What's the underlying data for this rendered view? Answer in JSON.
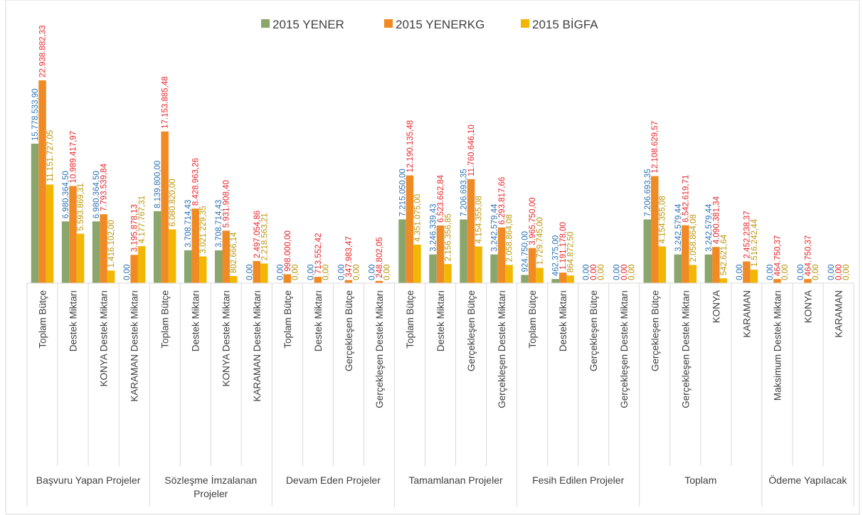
{
  "chart_data": {
    "type": "bar",
    "groups": [
      {
        "name": "Başvuru Yapan Projeler",
        "categories": [
          "Toplam Bütçe",
          "Destek Miktarı",
          "KONYA Destek Miktarı",
          "KARAMAN Destek Miktarı"
        ]
      },
      {
        "name": "Sözleşme İmzalanan Projeler",
        "categories": [
          "Toplam Bütçe",
          "Destek Miktarı",
          "KONYA Destek Miktarı",
          "KARAMAN Destek Miktarı"
        ]
      },
      {
        "name": "Devam Eden Projeler",
        "categories": [
          "Toplam Bütçe",
          "Destek Miktarı",
          "Gerçekleşen Bütçe",
          "Gerçekleşen Destek Miktarı"
        ]
      },
      {
        "name": "Tamamlanan Projeler",
        "categories": [
          "Toplam Bütçe",
          "Destek Miktarı",
          "Gerçekleşen Bütçe",
          "Gerçekleşen Destek Miktarı"
        ]
      },
      {
        "name": "Fesih Edilen Projeler",
        "categories": [
          "Toplam Bütçe",
          "Destek Miktarı",
          "Gerçekleşen Bütçe",
          "Gerçekleşen Destek Miktarı"
        ]
      },
      {
        "name": "Toplam",
        "categories": [
          "Gerçekleşen Bütçe",
          "Gerçekleşen Destek Miktarı",
          "KONYA",
          "KARAMAN"
        ]
      },
      {
        "name": "Ödeme Yapılacak",
        "categories": [
          "Maksimum Destek Miktarı",
          "KONYA",
          "KARAMAN"
        ]
      }
    ],
    "series": [
      {
        "name": "2015 YENER",
        "color": "#8aa66c",
        "label_color": "#2e75b6",
        "values": [
          15778533.9,
          6980364.5,
          6980364.5,
          0,
          8139800,
          3708714.43,
          3708714.43,
          0,
          0,
          0,
          0,
          0,
          7215050,
          3246339.43,
          7206693.35,
          3242579.44,
          924750,
          462375,
          0,
          0,
          7206693.35,
          3242579.44,
          3242579.44,
          0,
          0,
          0,
          0
        ],
        "value_labels": [
          "15.778.533,90",
          "6.980.364,50",
          "6.980.364,50",
          "0,00",
          "8.139.800,00",
          "3.708.714,43",
          "3.708.714,43",
          "0,00",
          "0,00",
          "0,00",
          "0,00",
          "0,00",
          "7.215.050,00",
          "3.246.339,43",
          "7.206.693,35",
          "3.242.579,44",
          "924.750,00",
          "462.375,00",
          "0,00",
          "0,00",
          "7.206.693,35",
          "3.242.579,44",
          "3.242.579,44",
          "0,00",
          "0,00",
          "0,00",
          "0,00"
        ]
      },
      {
        "name": "2015 YENERKG",
        "color": "#f08a24",
        "label_color": "#e8262a",
        "values": [
          22938882.33,
          10989417.97,
          7793539.84,
          3195878.13,
          17153885.48,
          8428963.26,
          5931908.4,
          2497054.86,
          998000,
          713552.42,
          347983.47,
          248802.05,
          12190135.48,
          6523662.84,
          11760646.1,
          6293817.66,
          3965750,
          1191178,
          0,
          0,
          12108629.57,
          6542619.71,
          4090381.34,
          2452238.37,
          464750.37,
          464750.37,
          0
        ],
        "value_labels": [
          "22.938.882,33",
          "10.989.417,97",
          "7.793.539,84",
          "3.195.878,13",
          "17.153.885,48",
          "8.428.963,26",
          "5.931.908,40",
          "2.497.054,86",
          "998.000,00",
          "713.552,42",
          "347.983,47",
          "248.802,05",
          "12.190.135,48",
          "6.523.662,84",
          "11.760.646,10",
          "6.293.817,66",
          "3.965.750,00",
          "1.191.178,00",
          "0,00",
          "0,00",
          "12.108.629,57",
          "6.542.619,71",
          "4.090.381,34",
          "2.452.238,37",
          "464.750,37",
          "464.750,37",
          "0,00"
        ]
      },
      {
        "name": "2015 BİGFA",
        "color": "#f2b705",
        "label_color": "#b8960c",
        "values": [
          11151727.05,
          5593869.31,
          1416102,
          4177767.31,
          6080820,
          3021229.35,
          802666.14,
          2218563.21,
          0,
          0,
          0,
          0,
          4351075,
          2156356.85,
          4154355.08,
          2058864.08,
          1729745,
          864872.5,
          0,
          0,
          4154355.08,
          2058864.08,
          542621.64,
          1516242.44,
          0,
          0,
          0
        ],
        "value_labels": [
          "11.151.727,05",
          "5.593.869,31",
          "1.416.102,00",
          "4.177.767,31",
          "6.080.820,00",
          "3.021.229,35",
          "802.666,14",
          "2.218.563,21",
          "0,00",
          "0,00",
          "0,00",
          "0,00",
          "4.351.075,00",
          "2.156.356,85",
          "4.154.355,08",
          "2.058.864,08",
          "1.729.745,00",
          "864.872,50",
          "0,00",
          "0,00",
          "4.154.355,08",
          "2.058.864,08",
          "542.621,64",
          "1.516.242,44",
          "0,00",
          "0,00",
          "0,00"
        ]
      }
    ]
  }
}
